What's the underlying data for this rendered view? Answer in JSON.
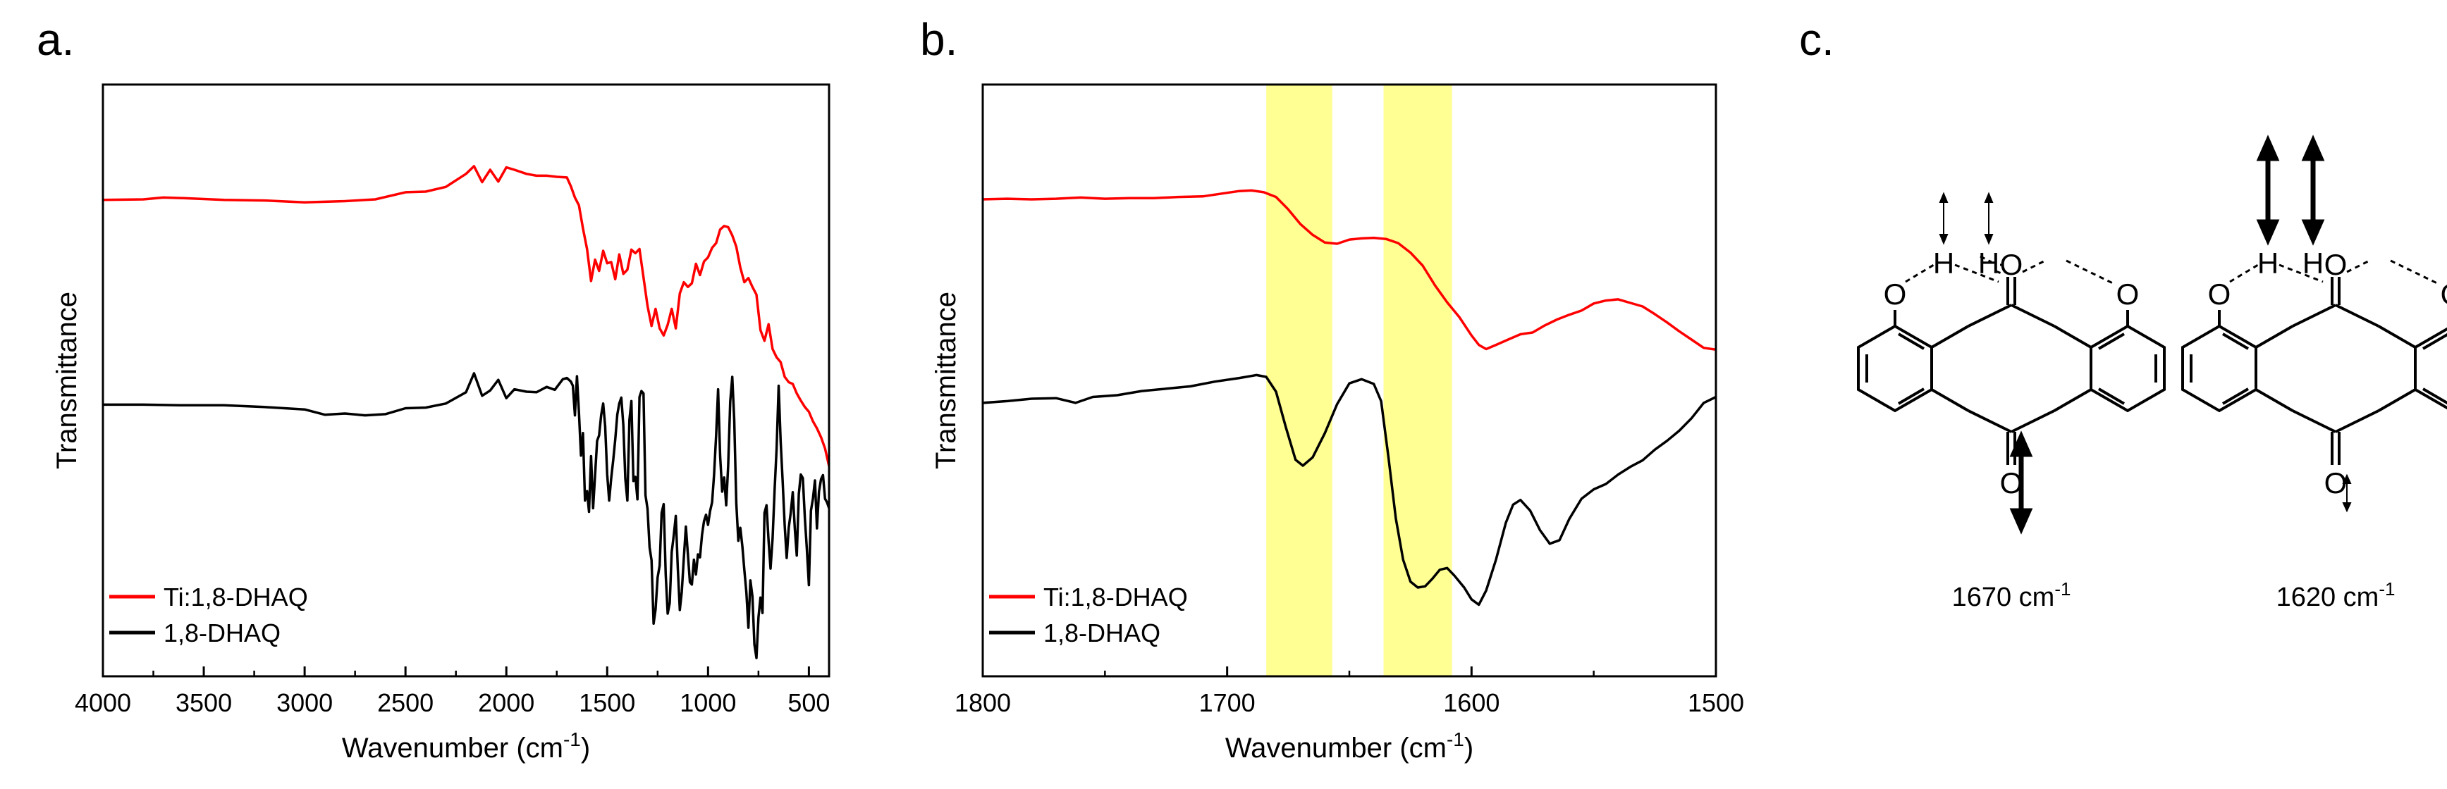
{
  "colors": {
    "red": "#ff0000",
    "black": "#000000",
    "highlight": "#ffff66",
    "axis": "#000000"
  },
  "panel_labels": {
    "a": "a.",
    "b": "b.",
    "c": "c."
  },
  "chart_data": [
    {
      "panel": "a",
      "type": "line",
      "title": "",
      "xlabel": "Wavenumber (cm",
      "xlabel_sup": "-1",
      "xlabel_tail": ")",
      "ylabel": "Transmittance",
      "xlim": [
        4000,
        400
      ],
      "ylim": [
        0,
        100
      ],
      "x_ticks": [
        4000,
        3500,
        3000,
        2500,
        2000,
        1500,
        1000,
        500
      ],
      "y_ticks_shown": false,
      "legend": {
        "position": "bottom-left",
        "entries": [
          "Ti:1,8-DHAQ",
          "1,8-DHAQ"
        ]
      },
      "series": [
        {
          "name": "Ti:1,8-DHAQ",
          "color": "#ff0000",
          "x": [
            4000,
            3800,
            3700,
            3600,
            3400,
            3200,
            3000,
            2800,
            2650,
            2500,
            2400,
            2300,
            2200,
            2160,
            2120,
            2080,
            2040,
            2000,
            1960,
            1900,
            1850,
            1800,
            1750,
            1700,
            1680,
            1660,
            1640,
            1620,
            1600,
            1580,
            1560,
            1540,
            1520,
            1500,
            1480,
            1460,
            1440,
            1420,
            1400,
            1380,
            1360,
            1340,
            1300,
            1280,
            1260,
            1240,
            1220,
            1200,
            1180,
            1160,
            1140,
            1120,
            1100,
            1080,
            1060,
            1040,
            1020,
            1000,
            980,
            960,
            940,
            920,
            900,
            880,
            860,
            840,
            820,
            800,
            780,
            760,
            740,
            720,
            700,
            680,
            660,
            640,
            620,
            600,
            580,
            560,
            540,
            520,
            500,
            480,
            460,
            440,
            420,
            400
          ],
          "y": [
            80.5,
            80.6,
            80.9,
            80.8,
            80.5,
            80.4,
            80.1,
            80.3,
            80.6,
            81.8,
            81.9,
            82.7,
            84.9,
            86.2,
            83.5,
            85.6,
            83.6,
            86.0,
            85.6,
            84.9,
            84.6,
            84.6,
            84.4,
            84.3,
            82.8,
            80.9,
            79.6,
            75.7,
            72.2,
            66.8,
            70.4,
            68.5,
            71.9,
            69.8,
            70.0,
            67.1,
            71.3,
            68.0,
            68.7,
            72.1,
            71.5,
            72.2,
            62.6,
            59.2,
            62.1,
            58.8,
            57.6,
            59.4,
            62.1,
            58.8,
            64.7,
            66.6,
            65.8,
            66.4,
            69.7,
            67.8,
            70.1,
            70.8,
            72.4,
            73.2,
            75.5,
            76.1,
            75.9,
            74.5,
            72.6,
            69.1,
            66.6,
            67.3,
            65.8,
            64.5,
            58.5,
            56.7,
            59.5,
            55.3,
            53.9,
            53.1,
            50.6,
            49.7,
            49.4,
            47.8,
            46.6,
            45.5,
            44.7,
            43.1,
            41.9,
            40.4,
            38.5,
            35.5
          ]
        },
        {
          "name": "1,8-DHAQ",
          "color": "#000000",
          "x": [
            4000,
            3800,
            3600,
            3400,
            3200,
            3000,
            2900,
            2800,
            2700,
            2600,
            2500,
            2400,
            2300,
            2200,
            2160,
            2120,
            2080,
            2040,
            2000,
            1960,
            1900,
            1850,
            1800,
            1760,
            1720,
            1700,
            1680,
            1670,
            1660,
            1650,
            1640,
            1630,
            1620,
            1610,
            1600,
            1590,
            1580,
            1570,
            1560,
            1550,
            1540,
            1530,
            1520,
            1510,
            1500,
            1490,
            1480,
            1470,
            1460,
            1450,
            1440,
            1430,
            1420,
            1410,
            1400,
            1390,
            1380,
            1370,
            1360,
            1350,
            1340,
            1330,
            1320,
            1310,
            1300,
            1290,
            1280,
            1270,
            1260,
            1250,
            1240,
            1230,
            1220,
            1210,
            1200,
            1190,
            1180,
            1170,
            1160,
            1150,
            1140,
            1130,
            1120,
            1110,
            1100,
            1090,
            1080,
            1070,
            1060,
            1050,
            1040,
            1030,
            1020,
            1010,
            1000,
            990,
            980,
            970,
            960,
            950,
            940,
            930,
            920,
            910,
            900,
            890,
            880,
            870,
            860,
            850,
            840,
            830,
            820,
            810,
            800,
            790,
            780,
            770,
            760,
            750,
            740,
            730,
            720,
            710,
            700,
            690,
            680,
            670,
            660,
            650,
            640,
            630,
            620,
            610,
            600,
            590,
            580,
            570,
            560,
            550,
            540,
            530,
            520,
            510,
            500,
            490,
            480,
            470,
            460,
            450,
            440,
            430,
            420,
            410,
            400
          ],
          "y": [
            45.9,
            45.9,
            45.8,
            45.8,
            45.5,
            45.1,
            44.2,
            44.4,
            44.1,
            44.3,
            45.3,
            45.4,
            46.1,
            48.0,
            51.2,
            47.4,
            48.3,
            50.1,
            47.0,
            48.5,
            48.1,
            48.0,
            48.9,
            48.4,
            50.2,
            50.4,
            49.8,
            49.1,
            44.1,
            50.7,
            44.6,
            37.3,
            41.1,
            29.7,
            31.3,
            27.8,
            37.2,
            28.4,
            34.0,
            39.8,
            40.7,
            44.1,
            46.1,
            42.3,
            34.1,
            29.7,
            33.5,
            36.6,
            40.0,
            44.2,
            46.1,
            47.1,
            42.4,
            33.4,
            29.7,
            43.3,
            46.5,
            33.0,
            33.7,
            29.9,
            47.2,
            48.2,
            47.8,
            30.6,
            28.3,
            21.8,
            19.6,
            8.9,
            11.3,
            16.7,
            18.7,
            27.6,
            29.1,
            17.2,
            10.6,
            12.4,
            21.0,
            23.8,
            27.1,
            18.4,
            11.2,
            14.3,
            20.0,
            25.3,
            20.7,
            15.9,
            15.5,
            19.7,
            17.2,
            20.6,
            20.1,
            23.9,
            26.2,
            27.3,
            25.6,
            27.9,
            29.4,
            34.1,
            40.7,
            48.5,
            37.2,
            31.2,
            33.6,
            28.9,
            35.6,
            46.4,
            50.6,
            43.3,
            29.3,
            22.9,
            25.1,
            22.0,
            18.0,
            14.2,
            8.2,
            16.2,
            13.5,
            5.4,
            3.1,
            10.0,
            13.3,
            10.7,
            27.6,
            28.9,
            22.9,
            18.2,
            23.3,
            31.6,
            38.5,
            49.1,
            39.8,
            32.9,
            25.4,
            20.0,
            25.1,
            27.6,
            31.1,
            25.0,
            20.4,
            30.8,
            34.1,
            33.5,
            26.7,
            21.5,
            15.4,
            28.0,
            30.0,
            33.1,
            25.0,
            31.2,
            33.3,
            34.0,
            30.0,
            29.4,
            28.4
          ]
        }
      ]
    },
    {
      "panel": "b",
      "type": "line",
      "title": "",
      "xlabel": "Wavenumber (cm",
      "xlabel_sup": "-1",
      "xlabel_tail": ")",
      "ylabel": "Transmittance",
      "xlim": [
        1800,
        1500
      ],
      "ylim": [
        0,
        100
      ],
      "x_ticks": [
        1800,
        1700,
        1600,
        1500
      ],
      "y_ticks_shown": false,
      "highlight_bands": [
        [
          1684,
          1657
        ],
        [
          1636,
          1608
        ]
      ],
      "legend": {
        "position": "bottom-left",
        "entries": [
          "Ti:1,8-DHAQ",
          "1,8-DHAQ"
        ]
      },
      "series": [
        {
          "name": "Ti:1,8-DHAQ",
          "color": "#ff0000",
          "x": [
            1800,
            1790,
            1780,
            1770,
            1760,
            1750,
            1740,
            1730,
            1720,
            1710,
            1700,
            1695,
            1690,
            1685,
            1680,
            1675,
            1670,
            1665,
            1660,
            1655,
            1650,
            1645,
            1640,
            1635,
            1630,
            1625,
            1620,
            1615,
            1610,
            1605,
            1600,
            1597,
            1594,
            1590,
            1585,
            1580,
            1575,
            1570,
            1565,
            1560,
            1555,
            1550,
            1545,
            1540,
            1535,
            1530,
            1525,
            1520,
            1515,
            1510,
            1505,
            1500
          ],
          "y": [
            80.6,
            80.7,
            80.6,
            80.7,
            80.9,
            80.7,
            80.8,
            80.8,
            81.0,
            81.1,
            81.7,
            82.0,
            82.1,
            81.8,
            81.0,
            78.9,
            76.4,
            74.6,
            73.3,
            73.1,
            73.8,
            74.0,
            74.1,
            73.9,
            73.2,
            71.6,
            69.4,
            66.1,
            63.2,
            60.7,
            57.6,
            56.0,
            55.3,
            56.0,
            56.9,
            57.8,
            58.1,
            59.3,
            60.3,
            61.1,
            61.8,
            63.0,
            63.5,
            63.7,
            63.1,
            62.5,
            61.2,
            59.8,
            58.3,
            56.9,
            55.5,
            55.2
          ]
        },
        {
          "name": "1,8-DHAQ",
          "color": "#000000",
          "x": [
            1800,
            1790,
            1780,
            1770,
            1762,
            1755,
            1745,
            1735,
            1725,
            1715,
            1705,
            1695,
            1688,
            1684,
            1680,
            1676,
            1672,
            1669,
            1665,
            1660,
            1655,
            1650,
            1645,
            1640,
            1637,
            1634,
            1631,
            1628,
            1625,
            1622,
            1619,
            1616,
            1613,
            1610,
            1607,
            1603,
            1600,
            1597,
            1594,
            1590,
            1586,
            1583,
            1580,
            1576,
            1572,
            1568,
            1564,
            1560,
            1555,
            1550,
            1545,
            1540,
            1535,
            1530,
            1525,
            1520,
            1515,
            1510,
            1505,
            1500
          ],
          "y": [
            46.2,
            46.5,
            46.9,
            47.0,
            46.2,
            47.2,
            47.5,
            48.2,
            48.6,
            49.0,
            49.8,
            50.4,
            50.9,
            50.6,
            48.1,
            42.1,
            36.6,
            35.6,
            37.0,
            41.1,
            46.0,
            49.5,
            50.2,
            49.4,
            46.5,
            37.0,
            26.7,
            19.7,
            16.0,
            15.0,
            15.2,
            16.5,
            18.0,
            18.3,
            17.0,
            15.0,
            13.0,
            12.1,
            14.5,
            19.7,
            25.9,
            29.0,
            29.8,
            28.0,
            24.7,
            22.4,
            23.0,
            26.6,
            30.0,
            31.6,
            32.5,
            34.1,
            35.4,
            36.5,
            38.3,
            39.8,
            41.5,
            43.6,
            46.2,
            47.2
          ]
        }
      ]
    }
  ],
  "panel_c": {
    "molecule_atoms": {
      "oxygen": "O",
      "hydrogen": "H"
    },
    "captions": [
      {
        "number": "1670 cm",
        "sup": "-1"
      },
      {
        "number": "1620 cm",
        "sup": "-1"
      }
    ],
    "icons": [
      "double-arrow-icon",
      "hydrogen-bond-dashes"
    ]
  }
}
